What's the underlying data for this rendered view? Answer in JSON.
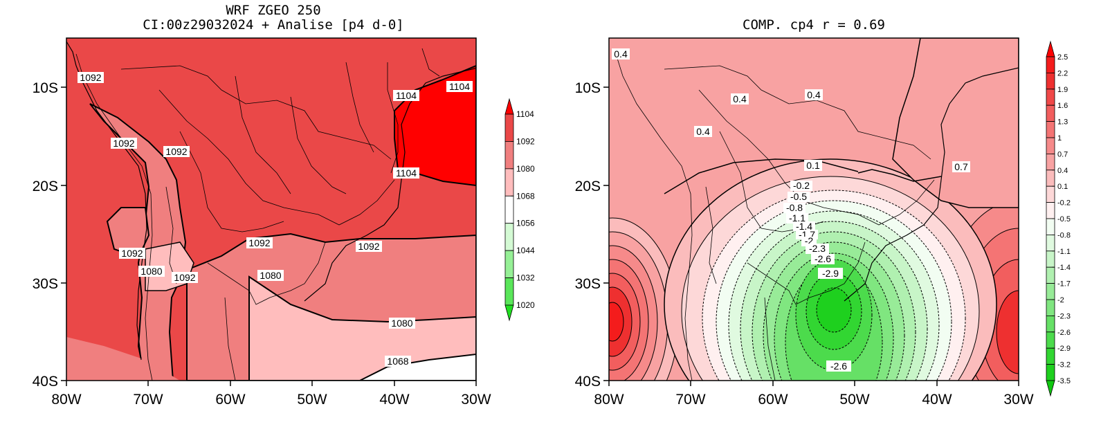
{
  "left_panel": {
    "title_line1": "WRF ZGEO 250",
    "title_line2": "CI:00z29032024 + Analise  [p4 d-0]",
    "lat_labels": [
      "10S",
      "20S",
      "30S",
      "40S"
    ],
    "lon_labels": [
      "80W",
      "70W",
      "60W",
      "50W",
      "40W",
      "30W"
    ],
    "contour_labels": [
      "1092",
      "1092",
      "1092",
      "1104",
      "1104",
      "1104",
      "1092",
      "1092",
      "1080",
      "1092",
      "1092",
      "1080",
      "1080",
      "1068"
    ],
    "colorbar_labels": [
      "1104",
      "1092",
      "1080",
      "1068",
      "1056",
      "1044",
      "1032",
      "1020"
    ],
    "colorbar_colors": [
      "#ff0000",
      "#ea4848",
      "#f07f7f",
      "#ffbdbd",
      "#ffffff",
      "#d4fad4",
      "#96f096",
      "#5ae65a",
      "#20e020"
    ]
  },
  "right_panel": {
    "title": "COMP. cp4  r =  0.69",
    "lat_labels": [
      "10S",
      "20S",
      "30S",
      "40S"
    ],
    "lon_labels": [
      "80W",
      "70W",
      "60W",
      "50W",
      "40W",
      "30W"
    ],
    "contour_labels": [
      "0.4",
      "0.4",
      "0.4",
      "0.4",
      "0.1",
      "0.7",
      "-0.2",
      "-0.5",
      "-0.8",
      "-1.1",
      "-1.4",
      "-1.7",
      "-2",
      "-2.3",
      "-2.6",
      "-2.9",
      "-2.6"
    ],
    "colorbar_labels": [
      "2.5",
      "2.2",
      "1.9",
      "1.6",
      "1.3",
      "1",
      "0.7",
      "0.4",
      "0.1",
      "-0.2",
      "-0.5",
      "-0.8",
      "-1.1",
      "-1.4",
      "-1.7",
      "-2",
      "-2.3",
      "-2.6",
      "-2.9",
      "-3.2",
      "-3.5"
    ],
    "colorbar_colors": [
      "#ff0000",
      "#f41c1c",
      "#ee3030",
      "#f04848",
      "#f25e5e",
      "#f47474",
      "#f68a8a",
      "#f8a2a2",
      "#fbbcbc",
      "#fdd8d8",
      "#fff0f0",
      "#f2fdf2",
      "#e0fae0",
      "#c8f5c8",
      "#b0f0b0",
      "#98eb98",
      "#80e680",
      "#66e066",
      "#4cdb4c",
      "#32d632",
      "#1ed01e",
      "#10c810"
    ]
  }
}
